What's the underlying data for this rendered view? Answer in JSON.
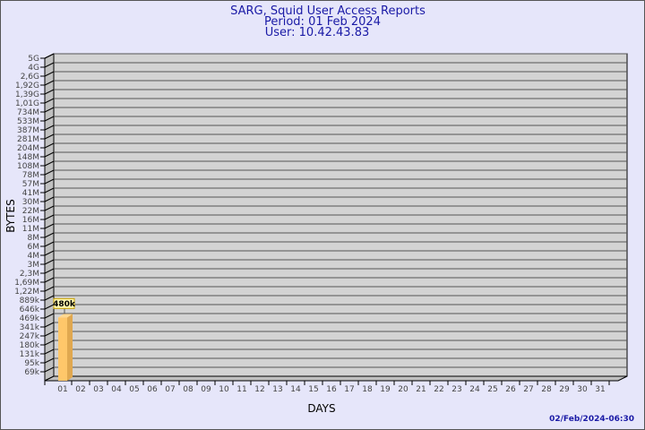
{
  "header": {
    "title": "SARG, Squid User Access Reports",
    "period": "Period: 01 Feb 2024",
    "user": "User: 10.42.43.83"
  },
  "footer": {
    "timestamp": "02/Feb/2024-06:30"
  },
  "colors": {
    "background": "#e6e6fa",
    "plot": "#d3d3d3",
    "bar": "#ffc76a",
    "bar_side": "#e0a850",
    "title": "#1a1aa6"
  },
  "chart_data": {
    "type": "bar",
    "xlabel": "DAYS",
    "ylabel": "BYTES",
    "y_scale": "log",
    "y_ticks": [
      "5G",
      "4G",
      "2,6G",
      "1,92G",
      "1,39G",
      "1,01G",
      "734M",
      "533M",
      "387M",
      "281M",
      "204M",
      "148M",
      "108M",
      "78M",
      "57M",
      "41M",
      "30M",
      "22M",
      "16M",
      "11M",
      "8M",
      "6M",
      "4M",
      "3M",
      "2,3M",
      "1,69M",
      "1,22M",
      "889k",
      "646k",
      "469k",
      "341k",
      "247k",
      "180k",
      "131k",
      "95k",
      "69k"
    ],
    "categories": [
      "01",
      "02",
      "03",
      "04",
      "05",
      "06",
      "07",
      "08",
      "09",
      "10",
      "11",
      "12",
      "13",
      "14",
      "15",
      "16",
      "17",
      "18",
      "19",
      "20",
      "21",
      "22",
      "23",
      "24",
      "25",
      "26",
      "27",
      "28",
      "29",
      "30",
      "31"
    ],
    "values": [
      {
        "day": "01",
        "value": 480000,
        "label": "480k"
      }
    ],
    "grid": true
  }
}
